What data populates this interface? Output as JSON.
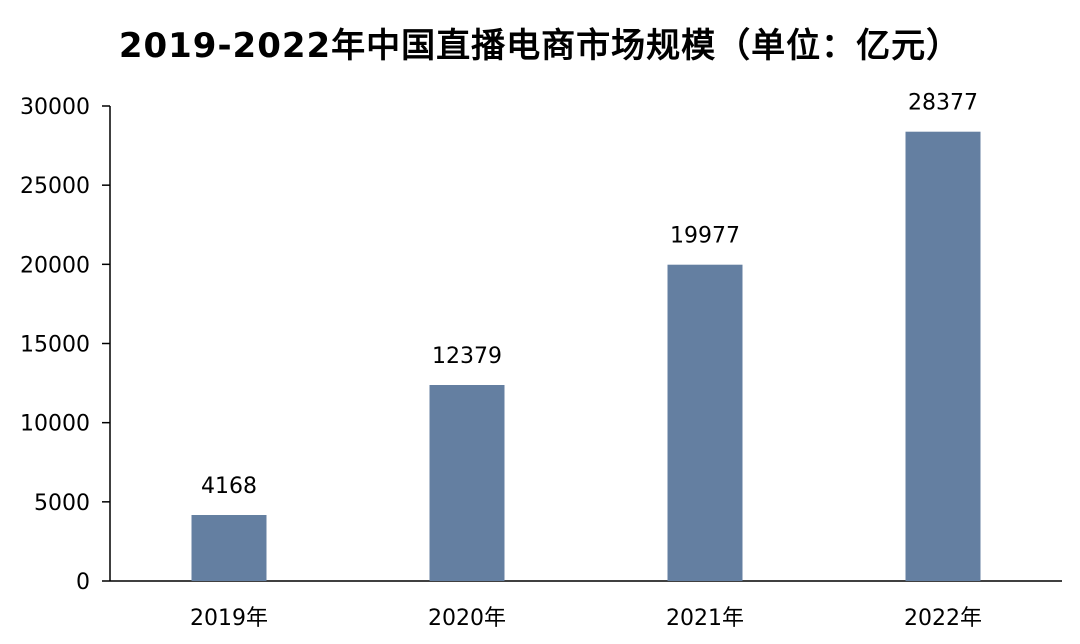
{
  "chart_data": {
    "type": "bar",
    "title": "2019-2022年中国直播电商市场规模（单位：亿元）",
    "xlabel": "",
    "ylabel": "",
    "categories": [
      "2019年",
      "2020年",
      "2021年",
      "2022年"
    ],
    "values": [
      4168,
      12379,
      19977,
      28377
    ],
    "data_labels": [
      "4168",
      "12379",
      "19977",
      "28377"
    ],
    "ylim": [
      0,
      30000
    ],
    "yticks": [
      0,
      5000,
      10000,
      15000,
      20000,
      25000,
      30000
    ],
    "ytick_labels": [
      "0",
      "5000",
      "10000",
      "15000",
      "20000",
      "25000",
      "30000"
    ],
    "grid": false,
    "legend": "none",
    "bar_color": "#647FA1",
    "axis_color": "#000000"
  }
}
